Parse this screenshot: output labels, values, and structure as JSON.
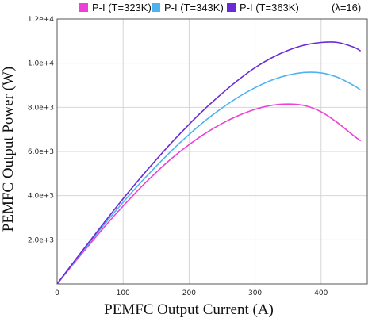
{
  "chart_data": {
    "type": "line",
    "xlabel": "PEMFC Output Current (A)",
    "ylabel": "PEMFC Output Power (W)",
    "xlim": [
      0,
      470
    ],
    "ylim": [
      0,
      12000
    ],
    "x_ticks": [
      "0",
      "100",
      "200",
      "300",
      "400"
    ],
    "y_ticks": [
      "2.0e+3",
      "4.0e+3",
      "6.0e+3",
      "8.0e+3",
      "1.0e+4",
      "1.2e+4"
    ],
    "y_tick_values": [
      2000,
      4000,
      6000,
      8000,
      10000,
      12000
    ],
    "x_tick_values": [
      0,
      100,
      200,
      300,
      400
    ],
    "grid": true,
    "legend_position": "top",
    "legend_note": "(λ=16)",
    "series": [
      {
        "name": "P-I (T=323K)",
        "color": "#ee3fd6",
        "x": [
          0,
          25,
          50,
          75,
          100,
          125,
          150,
          175,
          200,
          225,
          250,
          275,
          300,
          325,
          350,
          375,
          400,
          425,
          450,
          460
        ],
        "y": [
          0,
          920,
          1820,
          2700,
          3530,
          4320,
          5050,
          5720,
          6310,
          6830,
          7270,
          7630,
          7910,
          8090,
          8150,
          8080,
          7800,
          7300,
          6700,
          6480
        ]
      },
      {
        "name": "P-I (T=343K)",
        "color": "#4fb3f0",
        "x": [
          0,
          25,
          50,
          75,
          100,
          125,
          150,
          175,
          200,
          225,
          250,
          275,
          300,
          325,
          350,
          375,
          400,
          425,
          450,
          460
        ],
        "y": [
          0,
          960,
          1900,
          2820,
          3700,
          4540,
          5330,
          6080,
          6770,
          7410,
          7970,
          8470,
          8890,
          9230,
          9460,
          9580,
          9560,
          9360,
          8980,
          8780
        ]
      },
      {
        "name": "P-I (T=363K)",
        "color": "#6a2bd6",
        "x": [
          0,
          25,
          50,
          75,
          100,
          125,
          150,
          175,
          200,
          225,
          250,
          275,
          300,
          325,
          350,
          375,
          400,
          425,
          450,
          460
        ],
        "y": [
          0,
          990,
          1960,
          2920,
          3860,
          4760,
          5620,
          6450,
          7230,
          7960,
          8630,
          9250,
          9800,
          10240,
          10580,
          10820,
          10940,
          10940,
          10720,
          10550
        ]
      }
    ]
  }
}
